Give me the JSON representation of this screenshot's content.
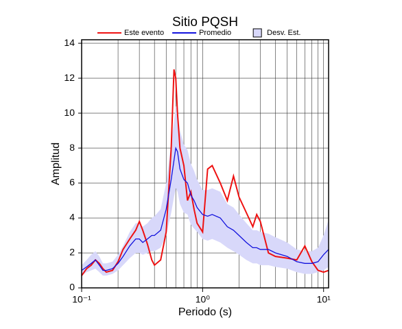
{
  "chart_data": {
    "type": "line",
    "title": "Sitio PQSH",
    "xlabel": "Periodo (s)",
    "ylabel": "Amplitud",
    "xscale": "log",
    "grid": true,
    "legend": "top",
    "x": [
      0.1,
      0.11,
      0.12,
      0.13,
      0.14,
      0.15,
      0.16,
      0.18,
      0.2,
      0.22,
      0.25,
      0.28,
      0.3,
      0.32,
      0.35,
      0.38,
      0.4,
      0.45,
      0.5,
      0.55,
      0.58,
      0.6,
      0.62,
      0.65,
      0.7,
      0.75,
      0.8,
      0.85,
      0.9,
      1.0,
      1.1,
      1.2,
      1.4,
      1.6,
      1.8,
      2.0,
      2.3,
      2.6,
      2.8,
      3.0,
      3.5,
      4,
      5,
      6,
      7,
      8,
      9,
      10,
      11
    ],
    "series": [
      {
        "name": "Este evento",
        "color": "#ee1111",
        "values": [
          0.7,
          1.1,
          1.3,
          1.6,
          1.4,
          1.1,
          0.9,
          1.0,
          1.5,
          2.2,
          2.8,
          3.3,
          3.8,
          3.3,
          2.5,
          1.6,
          1.3,
          1.6,
          3.2,
          8.0,
          12.5,
          12.0,
          10.0,
          8.0,
          7.0,
          5.0,
          5.5,
          4.5,
          3.7,
          3.2,
          6.8,
          7.0,
          6.0,
          5.0,
          6.4,
          5.2,
          4.3,
          3.5,
          4.2,
          3.8,
          2.0,
          1.8,
          1.7,
          1.6,
          2.4,
          1.5,
          1.0,
          0.9,
          1.0
        ]
      },
      {
        "name": "Promedio",
        "color": "#1111dd",
        "values": [
          1.0,
          1.2,
          1.4,
          1.6,
          1.3,
          1.0,
          1.0,
          1.1,
          1.4,
          1.8,
          2.4,
          2.8,
          2.8,
          2.6,
          2.8,
          3.0,
          3.0,
          3.3,
          4.5,
          6.2,
          7.3,
          8.0,
          7.8,
          6.8,
          6.2,
          6.0,
          5.3,
          5.0,
          4.6,
          4.2,
          4.1,
          4.2,
          4.0,
          3.5,
          3.3,
          3.0,
          2.6,
          2.3,
          2.3,
          2.2,
          2.2,
          2.0,
          1.8,
          1.5,
          1.4,
          1.4,
          1.5,
          1.9,
          2.2
        ]
      },
      {
        "name": "Desv. Est.",
        "color": "#d8d8fa",
        "type": "band",
        "lower": [
          0.7,
          0.9,
          1.0,
          1.1,
          0.9,
          0.7,
          0.7,
          0.8,
          1.0,
          1.3,
          1.7,
          2.0,
          2.0,
          1.9,
          2.0,
          2.1,
          2.1,
          2.3,
          3.0,
          4.3,
          5.2,
          5.7,
          5.5,
          4.8,
          4.3,
          4.2,
          3.6,
          3.4,
          3.2,
          2.8,
          2.7,
          2.8,
          2.6,
          2.3,
          2.1,
          1.9,
          1.6,
          1.4,
          1.4,
          1.3,
          1.3,
          1.2,
          1.1,
          0.9,
          0.8,
          0.8,
          0.9,
          1.0,
          1.2
        ],
        "upper": [
          1.3,
          1.6,
          1.9,
          2.1,
          1.8,
          1.4,
          1.4,
          1.5,
          1.9,
          2.4,
          3.2,
          3.7,
          3.7,
          3.5,
          3.7,
          4.0,
          4.1,
          4.5,
          6.0,
          8.3,
          9.5,
          10.4,
          10.2,
          9.0,
          8.2,
          7.9,
          7.1,
          6.7,
          6.2,
          5.6,
          5.6,
          5.7,
          5.5,
          4.8,
          4.6,
          4.2,
          3.7,
          3.3,
          3.3,
          3.2,
          3.1,
          2.9,
          2.6,
          2.2,
          2.1,
          2.1,
          2.3,
          3.0,
          3.9
        ]
      }
    ],
    "xlim": [
      0.1,
      11
    ],
    "ylim": [
      0,
      14.2
    ],
    "xticks": [
      {
        "value": 0.1,
        "label": "10⁻¹"
      },
      {
        "value": 1,
        "label": "10⁰"
      },
      {
        "value": 10,
        "label": "10¹"
      }
    ],
    "yticks": [
      0,
      2,
      4,
      6,
      8,
      10,
      12,
      14
    ]
  }
}
